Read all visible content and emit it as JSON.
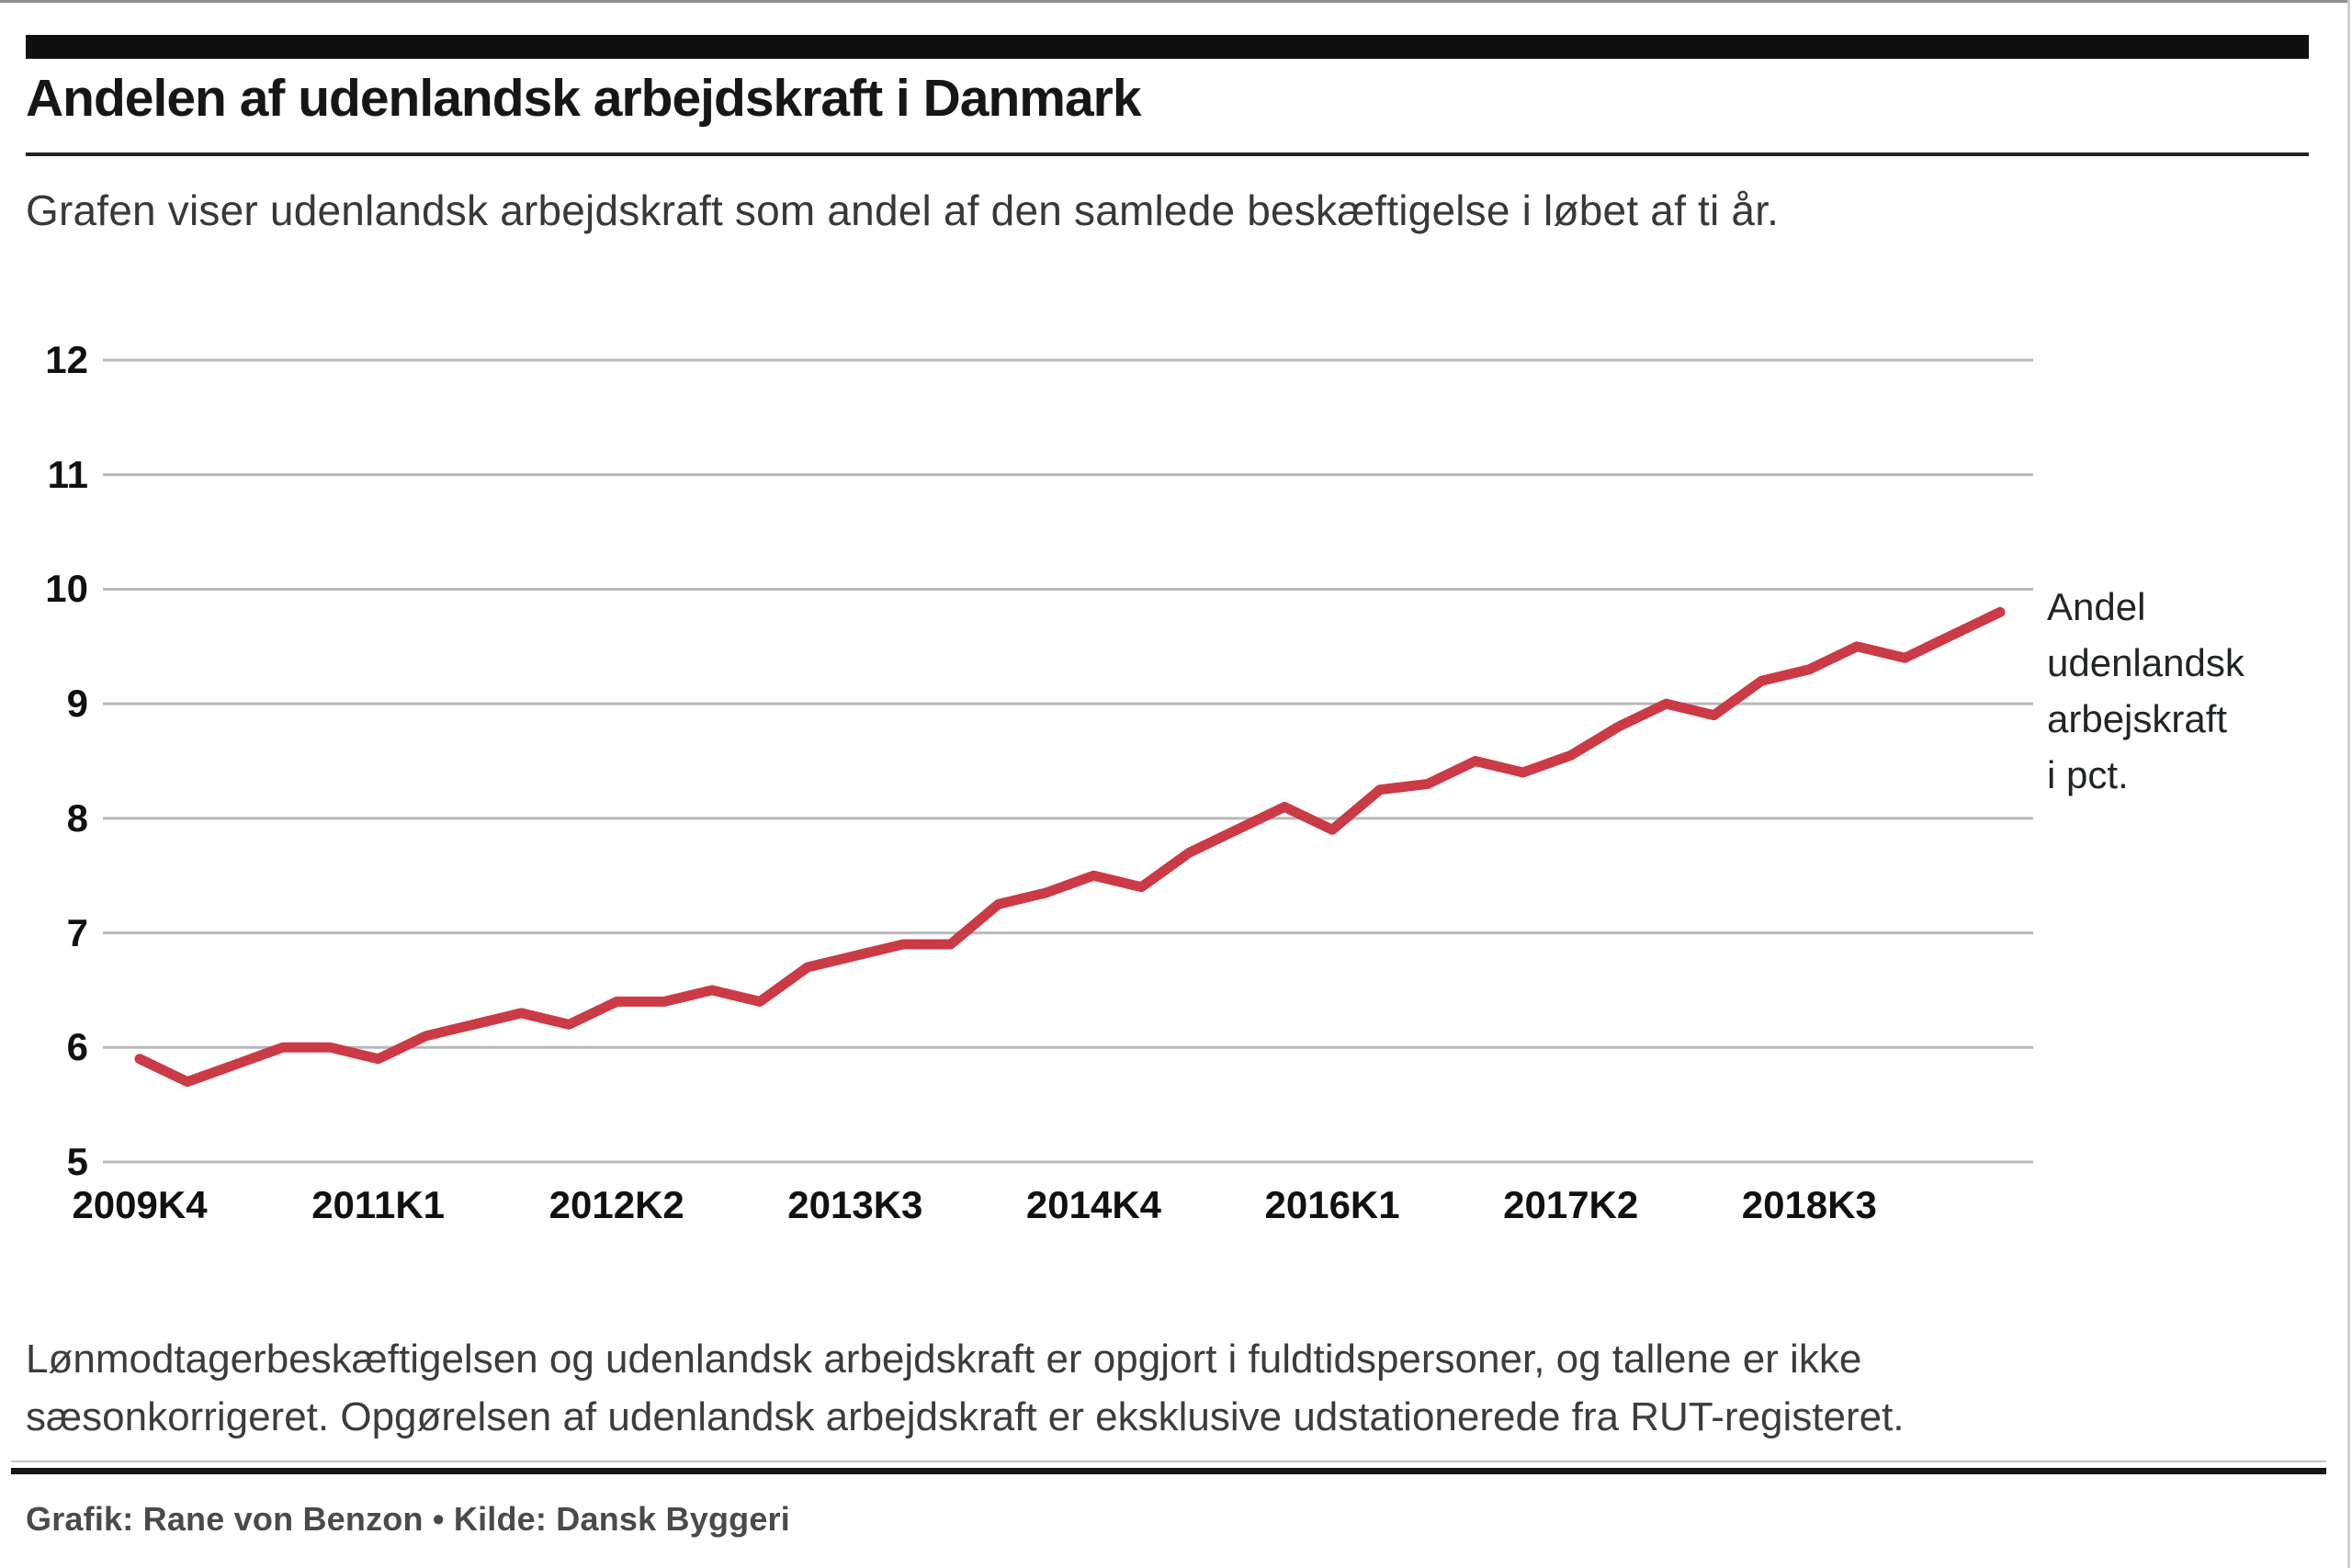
{
  "header": {
    "title": "Andelen af udenlandsk arbejdskraft i Danmark",
    "subtitle": "Grafen viser udenlandsk arbejdskraft som andel af den samlede beskæftigelse i løbet af ti år."
  },
  "chart_data": {
    "type": "line",
    "title": "Andelen af udenlandsk arbejdskraft i Danmark",
    "xlabel": "",
    "ylabel": "Andel udenlandsk arbejskraft i pct.",
    "ylim": [
      5,
      12
    ],
    "y_ticks": [
      5,
      6,
      7,
      8,
      9,
      10,
      11,
      12
    ],
    "grid": "horizontal",
    "legend_position": "right",
    "legend_lines": [
      "Andel",
      "udenlandsk",
      "arbejskraft",
      "i pct."
    ],
    "line_color": "#cb3b45",
    "x": [
      "2009K4",
      "2010K1",
      "2010K2",
      "2010K3",
      "2010K4",
      "2011K1",
      "2011K2",
      "2011K3",
      "2011K4",
      "2012K1",
      "2012K2",
      "2012K3",
      "2012K4",
      "2013K1",
      "2013K2",
      "2013K3",
      "2013K4",
      "2014K1",
      "2014K2",
      "2014K3",
      "2014K4",
      "2015K1",
      "2015K2",
      "2015K3",
      "2015K4",
      "2016K1",
      "2016K2",
      "2016K3",
      "2016K4",
      "2017K1",
      "2017K2",
      "2017K3",
      "2017K4",
      "2018K1",
      "2018K2",
      "2018K3",
      "2018K4",
      "2019K1",
      "2019K2",
      "2019K3"
    ],
    "values": [
      5.9,
      5.7,
      5.85,
      6.0,
      6.0,
      5.9,
      6.1,
      6.2,
      6.3,
      6.2,
      6.4,
      6.4,
      6.5,
      6.4,
      6.7,
      6.8,
      6.9,
      6.9,
      7.25,
      7.35,
      7.5,
      7.4,
      7.7,
      7.9,
      8.1,
      7.9,
      8.25,
      8.3,
      8.5,
      8.4,
      8.55,
      8.8,
      9.0,
      8.9,
      9.2,
      9.3,
      9.5,
      9.4,
      9.6,
      9.8
    ],
    "x_tick_labels": [
      "2009K4",
      "2011K1",
      "2012K2",
      "2013K3",
      "2014K4",
      "2016K1",
      "2017K2",
      "2018K3"
    ]
  },
  "footnote": {
    "lines": [
      "Lønmodtagerbeskæftigelsen og udenlandsk arbejdskraft er opgjort i fuldtidspersoner, og tallene er ikke",
      "sæsonkorrigeret. Opgørelsen af udenlandsk arbejdskraft er eksklusive udstationerede fra RUT-registeret."
    ]
  },
  "credits": {
    "text": "Grafik: Rane von Benzon • Kilde: Dansk Byggeri"
  }
}
